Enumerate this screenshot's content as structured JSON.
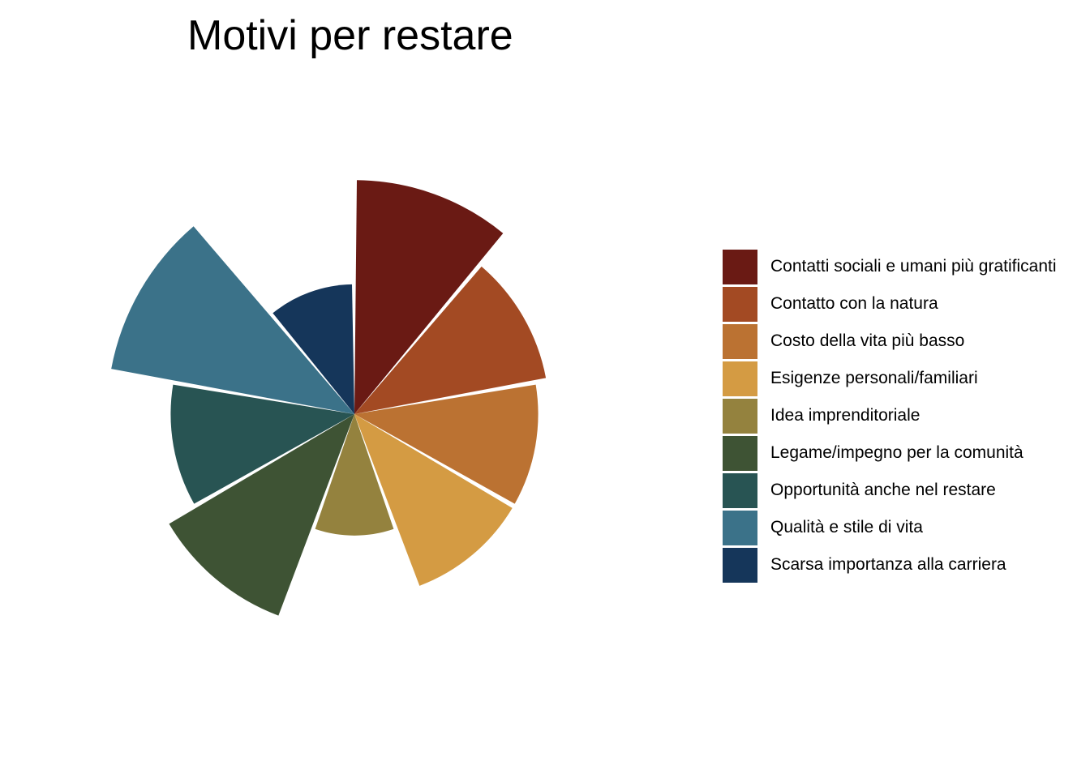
{
  "chart_data": {
    "type": "polar-area",
    "title": "Motivi per restare",
    "categories": [
      "Contatti sociali e umani più gratificanti",
      "Contatto con la natura",
      "Costo della vita più basso",
      "Esigenze personali/familiari",
      "Idea imprenditoriale",
      "Legame/impegno per la comunità",
      "Opportunità anche nel restare",
      "Qualità e stile di vita",
      "Scarsa importanza alla carriera"
    ],
    "values": [
      26,
      18,
      16,
      16,
      7,
      22,
      16,
      29,
      8
    ],
    "colors": [
      "#6a1a14",
      "#a34a23",
      "#bb7232",
      "#d49b43",
      "#94823e",
      "#3e5334",
      "#285453",
      "#3b7289",
      "#15365a"
    ],
    "legend_position": "right",
    "grid": false
  }
}
